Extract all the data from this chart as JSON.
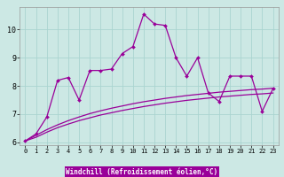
{
  "title": "",
  "xlabel": "Windchill (Refroidissement éolien,°C)",
  "background_color": "#cce8e4",
  "grid_color": "#aad4d0",
  "line_color": "#990099",
  "xlim": [
    -0.5,
    23.5
  ],
  "ylim": [
    5.9,
    10.8
  ],
  "yticks": [
    6,
    7,
    8,
    9,
    10
  ],
  "xticks": [
    0,
    1,
    2,
    3,
    4,
    5,
    6,
    7,
    8,
    9,
    10,
    11,
    12,
    13,
    14,
    15,
    16,
    17,
    18,
    19,
    20,
    21,
    22,
    23
  ],
  "main_x": [
    0,
    1,
    2,
    3,
    4,
    5,
    6,
    7,
    8,
    9,
    10,
    11,
    12,
    13,
    14,
    15,
    16,
    17,
    18,
    19,
    20,
    21,
    22,
    23
  ],
  "main_y": [
    6.05,
    6.3,
    6.9,
    8.2,
    8.3,
    7.5,
    8.55,
    8.55,
    8.6,
    9.15,
    9.4,
    10.55,
    10.2,
    10.15,
    9.0,
    8.35,
    9.0,
    7.75,
    7.45,
    8.35,
    8.35,
    8.35,
    7.1,
    7.9
  ],
  "reg1_x": [
    0,
    1,
    2,
    3,
    4,
    5,
    6,
    7,
    8,
    9,
    10,
    11,
    12,
    13,
    14,
    15,
    16,
    17,
    18,
    19,
    20,
    21,
    22,
    23
  ],
  "reg1_y": [
    6.05,
    6.25,
    6.45,
    6.62,
    6.77,
    6.9,
    7.02,
    7.12,
    7.21,
    7.29,
    7.37,
    7.44,
    7.5,
    7.56,
    7.61,
    7.66,
    7.7,
    7.74,
    7.78,
    7.81,
    7.84,
    7.87,
    7.89,
    7.92
  ],
  "reg2_x": [
    0,
    1,
    2,
    3,
    4,
    5,
    6,
    7,
    8,
    9,
    10,
    11,
    12,
    13,
    14,
    15,
    16,
    17,
    18,
    19,
    20,
    21,
    22,
    23
  ],
  "reg2_y": [
    6.05,
    6.18,
    6.36,
    6.52,
    6.65,
    6.77,
    6.87,
    6.97,
    7.05,
    7.13,
    7.2,
    7.27,
    7.33,
    7.39,
    7.44,
    7.49,
    7.53,
    7.57,
    7.61,
    7.64,
    7.67,
    7.7,
    7.72,
    7.75
  ],
  "xlabel_bg": "#990099",
  "xlabel_color": "#ffffff",
  "xlabel_fontsize": 5.5,
  "tick_fontsize": 5.0,
  "ytick_fontsize": 6.0
}
